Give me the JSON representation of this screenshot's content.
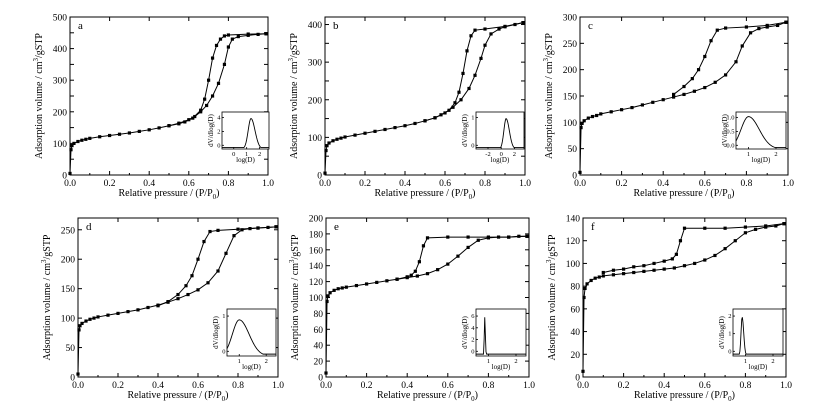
{
  "figure": {
    "panel_count": 6
  },
  "chart_data": [
    {
      "id": "a",
      "type": "line",
      "panel_label": "a",
      "xlabel": "Relative pressure / (P/P",
      "xlabel_sub": "0",
      "xlabel_tail": ")",
      "ylabel": "Adsorption volume / cm",
      "ylabel_sup": "3",
      "ylabel_tail": "/gSTP",
      "xlim": [
        0,
        1
      ],
      "ylim": [
        0,
        500
      ],
      "xticks": [
        0.0,
        0.2,
        0.4,
        0.6,
        0.8,
        1.0
      ],
      "xtick_labels": [
        "0.0",
        "0.2",
        "0.4",
        "0.6",
        "0.8",
        "1.0"
      ],
      "yticks": [
        0,
        50,
        100,
        150,
        200,
        250,
        300,
        350,
        400,
        450,
        500
      ],
      "ytick_labels": [
        "0",
        "",
        "100",
        "",
        "200",
        "",
        "300",
        "",
        "400",
        "",
        "500"
      ],
      "series": [
        {
          "name": "adsorption",
          "x": [
            0.0,
            0.005,
            0.01,
            0.02,
            0.04,
            0.06,
            0.08,
            0.1,
            0.15,
            0.2,
            0.25,
            0.3,
            0.35,
            0.4,
            0.45,
            0.5,
            0.55,
            0.6,
            0.63,
            0.66,
            0.69,
            0.72,
            0.75,
            0.78,
            0.8,
            0.82,
            0.85,
            0.9,
            0.95,
            0.99
          ],
          "y": [
            5,
            80,
            93,
            100,
            106,
            110,
            113,
            116,
            121,
            125,
            129,
            133,
            138,
            143,
            149,
            156,
            164,
            175,
            185,
            200,
            220,
            250,
            290,
            350,
            405,
            430,
            438,
            442,
            445,
            447
          ]
        },
        {
          "name": "desorption",
          "x": [
            0.99,
            0.9,
            0.8,
            0.78,
            0.76,
            0.74,
            0.72,
            0.7,
            0.68,
            0.66,
            0.62,
            0.58,
            0.55,
            0.5
          ],
          "y": [
            447,
            446,
            443,
            440,
            430,
            410,
            370,
            300,
            240,
            205,
            180,
            168,
            162,
            156
          ]
        }
      ],
      "inset": {
        "xlabel": "log(D)",
        "ylabel": "dV/dlog(D)",
        "xlim": [
          -1,
          2
        ],
        "ylim": [
          0,
          4
        ],
        "xtick_labels": [
          "0",
          "1",
          "2"
        ],
        "ytick_labels": [
          "0",
          "2",
          "4"
        ],
        "peak_center": 0.85,
        "peak_height": 3.3,
        "peak_width": 0.18
      }
    },
    {
      "id": "b",
      "type": "line",
      "panel_label": "b",
      "xlabel": "Relative pressure / (P/P",
      "xlabel_sub": "0",
      "xlabel_tail": ")",
      "ylabel": "Adsorption volume / cm",
      "ylabel_sup": "3",
      "ylabel_tail": "/gSTP",
      "xlim": [
        0,
        1
      ],
      "ylim": [
        0,
        420
      ],
      "xticks": [
        0.0,
        0.2,
        0.4,
        0.6,
        0.8,
        1.0
      ],
      "xtick_labels": [
        "0.0",
        "0.2",
        "0.4",
        "0.6",
        "0.8",
        "1.0"
      ],
      "yticks": [
        0,
        50,
        100,
        150,
        200,
        250,
        300,
        350,
        400
      ],
      "ytick_labels": [
        "0",
        "",
        "100",
        "",
        "200",
        "",
        "300",
        "",
        "400"
      ],
      "series": [
        {
          "name": "adsorption",
          "x": [
            0.0,
            0.005,
            0.01,
            0.02,
            0.04,
            0.06,
            0.08,
            0.1,
            0.15,
            0.2,
            0.25,
            0.3,
            0.35,
            0.4,
            0.45,
            0.5,
            0.55,
            0.6,
            0.64,
            0.68,
            0.72,
            0.75,
            0.78,
            0.8,
            0.83,
            0.87,
            0.9,
            0.95,
            0.99
          ],
          "y": [
            5,
            65,
            78,
            85,
            91,
            95,
            98,
            101,
            106,
            111,
            116,
            121,
            126,
            131,
            137,
            144,
            152,
            165,
            180,
            200,
            230,
            265,
            310,
            345,
            375,
            388,
            394,
            400,
            405
          ]
        },
        {
          "name": "desorption",
          "x": [
            0.99,
            0.9,
            0.8,
            0.75,
            0.73,
            0.71,
            0.69,
            0.67,
            0.65,
            0.62,
            0.58,
            0.55,
            0.5
          ],
          "y": [
            405,
            395,
            388,
            385,
            370,
            330,
            270,
            220,
            192,
            172,
            160,
            152,
            144
          ]
        }
      ],
      "inset": {
        "xlabel": "log(D)",
        "ylabel": "dV/dlog(D)",
        "xlim": [
          -2.2,
          2.5
        ],
        "ylim": [
          0,
          1.4
        ],
        "xtick_labels": [
          "-2",
          "0",
          "2"
        ],
        "ytick_labels": [
          "0",
          "1"
        ],
        "peak_center": 0.75,
        "peak_height": 1.15,
        "peak_width": 0.22
      }
    },
    {
      "id": "c",
      "type": "line",
      "panel_label": "c",
      "xlabel": "Relative pressure / (P/P",
      "xlabel_sub": "0",
      "xlabel_tail": ")",
      "ylabel": "Adsorption volume / cm",
      "ylabel_sup": "3",
      "ylabel_tail": "/gSTP",
      "xlim": [
        0,
        1
      ],
      "ylim": [
        0,
        300
      ],
      "xticks": [
        0.0,
        0.2,
        0.4,
        0.6,
        0.8,
        1.0
      ],
      "xtick_labels": [
        "0.0",
        "0.2",
        "0.4",
        "0.6",
        "0.8",
        "1.0"
      ],
      "yticks": [
        0,
        50,
        100,
        150,
        200,
        250,
        300
      ],
      "ytick_labels": [
        "0",
        "50",
        "100",
        "150",
        "200",
        "250",
        "300"
      ],
      "series": [
        {
          "name": "adsorption",
          "x": [
            0.0,
            0.005,
            0.01,
            0.02,
            0.04,
            0.06,
            0.08,
            0.1,
            0.15,
            0.2,
            0.25,
            0.3,
            0.35,
            0.4,
            0.45,
            0.5,
            0.55,
            0.6,
            0.65,
            0.7,
            0.75,
            0.78,
            0.82,
            0.86,
            0.9,
            0.95,
            0.99
          ],
          "y": [
            5,
            90,
            98,
            103,
            108,
            111,
            113,
            116,
            120,
            124,
            128,
            133,
            138,
            143,
            148,
            153,
            159,
            166,
            176,
            190,
            215,
            245,
            270,
            278,
            281,
            284,
            290
          ]
        },
        {
          "name": "desorption",
          "x": [
            0.99,
            0.9,
            0.8,
            0.7,
            0.66,
            0.63,
            0.6,
            0.57,
            0.54,
            0.5,
            0.45
          ],
          "y": [
            290,
            284,
            281,
            279,
            275,
            255,
            225,
            200,
            183,
            168,
            153
          ]
        }
      ],
      "inset": {
        "xlabel": "log(D)",
        "ylabel": "dV/dlog(D)",
        "xlim": [
          0.5,
          2.5
        ],
        "ylim": [
          0,
          1.2
        ],
        "xtick_labels": [
          "1",
          "2"
        ],
        "ytick_labels": [
          "0.0",
          "0.5",
          "1.0"
        ],
        "peak_center": 1.0,
        "peak_height": 1.05,
        "peak_width": 0.3
      }
    },
    {
      "id": "d",
      "type": "line",
      "panel_label": "d",
      "xlabel": "Relative pressure / (P/P",
      "xlabel_sub": "0",
      "xlabel_tail": ")",
      "ylabel": "Adsorption volume / cm",
      "ylabel_sup": "3",
      "ylabel_tail": "/gSTP",
      "xlim": [
        0,
        1
      ],
      "ylim": [
        0,
        270
      ],
      "xticks": [
        0.0,
        0.2,
        0.4,
        0.6,
        0.8,
        1.0
      ],
      "xtick_labels": [
        "0.0",
        "0.2",
        "0.4",
        "0.6",
        "0.8",
        "1.0"
      ],
      "yticks": [
        0,
        50,
        100,
        150,
        200,
        250
      ],
      "ytick_labels": [
        "0",
        "50",
        "100",
        "150",
        "200",
        "250"
      ],
      "series": [
        {
          "name": "adsorption",
          "x": [
            0.0,
            0.005,
            0.01,
            0.02,
            0.04,
            0.06,
            0.08,
            0.1,
            0.15,
            0.2,
            0.25,
            0.3,
            0.35,
            0.4,
            0.45,
            0.5,
            0.55,
            0.6,
            0.65,
            0.7,
            0.74,
            0.78,
            0.82,
            0.86,
            0.9,
            0.95,
            0.99
          ],
          "y": [
            5,
            80,
            87,
            91,
            95,
            98,
            100,
            102,
            105,
            108,
            111,
            114,
            118,
            122,
            127,
            133,
            140,
            148,
            160,
            180,
            210,
            240,
            250,
            252,
            253,
            254,
            255
          ]
        },
        {
          "name": "desorption",
          "x": [
            0.99,
            0.9,
            0.8,
            0.7,
            0.66,
            0.63,
            0.6,
            0.57,
            0.54,
            0.5,
            0.45,
            0.4
          ],
          "y": [
            255,
            253,
            251,
            249,
            247,
            230,
            200,
            172,
            155,
            140,
            128,
            121
          ]
        }
      ],
      "inset": {
        "xlabel": "log(D)",
        "ylabel": "dV/dlog(D)",
        "xlim": [
          0.5,
          2.5
        ],
        "ylim": [
          0,
          1.3
        ],
        "xtick_labels": [
          "1",
          "2"
        ],
        "ytick_labels": [
          "0",
          "1"
        ],
        "peak_center": 1.0,
        "peak_height": 1.0,
        "peak_width": 0.28
      }
    },
    {
      "id": "e",
      "type": "line",
      "panel_label": "e",
      "xlabel": "Relative pressure / (P/P",
      "xlabel_sub": "0",
      "xlabel_tail": ")",
      "ylabel": "Adsorption volume / cm",
      "ylabel_sup": "3",
      "ylabel_tail": "/gSTP",
      "xlim": [
        0,
        1
      ],
      "ylim": [
        0,
        200
      ],
      "xticks": [
        0.0,
        0.2,
        0.4,
        0.6,
        0.8,
        1.0
      ],
      "xtick_labels": [
        "0.0",
        "0.2",
        "0.4",
        "0.6",
        "0.8",
        "1.0"
      ],
      "yticks": [
        0,
        20,
        40,
        60,
        80,
        100,
        120,
        140,
        160,
        180,
        200
      ],
      "ytick_labels": [
        "0",
        "20",
        "40",
        "60",
        "80",
        "100",
        "120",
        "140",
        "160",
        "180",
        "200"
      ],
      "series": [
        {
          "name": "adsorption",
          "x": [
            0.0,
            0.005,
            0.01,
            0.02,
            0.04,
            0.06,
            0.08,
            0.1,
            0.15,
            0.2,
            0.25,
            0.3,
            0.35,
            0.4,
            0.45,
            0.5,
            0.55,
            0.6,
            0.65,
            0.7,
            0.75,
            0.8,
            0.85,
            0.9,
            0.95,
            0.99
          ],
          "y": [
            5,
            95,
            102,
            106,
            109,
            111,
            112,
            113,
            115,
            117,
            119,
            121,
            123,
            125,
            127,
            130,
            135,
            142,
            152,
            163,
            172,
            175,
            176,
            176,
            177,
            177
          ]
        },
        {
          "name": "desorption",
          "x": [
            0.99,
            0.9,
            0.8,
            0.7,
            0.6,
            0.5,
            0.48,
            0.46,
            0.44,
            0.42,
            0.4,
            0.35
          ],
          "y": [
            177,
            176,
            176,
            176,
            176,
            175,
            165,
            145,
            133,
            128,
            126,
            123
          ]
        }
      ],
      "inset": {
        "xlabel": "log(D)",
        "ylabel": "dV/dlog(D)",
        "xlim": [
          0.2,
          2.5
        ],
        "ylim": [
          0,
          7
        ],
        "xtick_labels": [
          "1",
          "2"
        ],
        "ytick_labels": [
          "0",
          "2",
          "4",
          "6"
        ],
        "peak_center": 0.6,
        "peak_height": 5.8,
        "peak_width": 0.02
      }
    },
    {
      "id": "f",
      "type": "line",
      "panel_label": "f",
      "xlabel": "Relative pressure / (P/P",
      "xlabel_sub": "0",
      "xlabel_tail": ")",
      "ylabel": "Adsorption volume / cm",
      "ylabel_sup": "3",
      "ylabel_tail": "/gSTP",
      "xlim": [
        0,
        1
      ],
      "ylim": [
        0,
        140
      ],
      "xticks": [
        0.0,
        0.2,
        0.4,
        0.6,
        0.8,
        1.0
      ],
      "xtick_labels": [
        "0.0",
        "0.2",
        "0.4",
        "0.6",
        "0.8",
        "1.0"
      ],
      "yticks": [
        0,
        20,
        40,
        60,
        80,
        100,
        120,
        140
      ],
      "ytick_labels": [
        "0",
        "20",
        "40",
        "60",
        "80",
        "100",
        "120",
        "140"
      ],
      "series": [
        {
          "name": "adsorption",
          "x": [
            0.0,
            0.005,
            0.01,
            0.02,
            0.04,
            0.06,
            0.08,
            0.1,
            0.15,
            0.2,
            0.25,
            0.3,
            0.35,
            0.4,
            0.45,
            0.5,
            0.55,
            0.6,
            0.65,
            0.7,
            0.75,
            0.8,
            0.85,
            0.9,
            0.95,
            0.99
          ],
          "y": [
            5,
            70,
            78,
            82,
            85,
            87,
            88,
            89,
            90,
            91,
            92,
            93,
            94,
            95,
            96,
            98,
            100,
            103,
            107,
            113,
            120,
            127,
            130,
            132,
            133,
            135
          ]
        },
        {
          "name": "desorption",
          "x": [
            0.99,
            0.9,
            0.8,
            0.7,
            0.6,
            0.5,
            0.48,
            0.46,
            0.44,
            0.4,
            0.35,
            0.3,
            0.25,
            0.2,
            0.15,
            0.1
          ],
          "y": [
            135,
            133,
            132,
            131,
            131,
            131,
            120,
            108,
            104,
            102,
            100,
            98,
            97,
            95,
            94,
            92
          ]
        }
      ],
      "inset": {
        "xlabel": "log(D)",
        "ylabel": "dV/dlog(D)",
        "xlim": [
          0.2,
          2.5
        ],
        "ylim": [
          0,
          2.4
        ],
        "xtick_labels": [
          "1",
          "2"
        ],
        "ytick_labels": [
          "0",
          "1",
          "2"
        ],
        "peak_center": 0.62,
        "peak_height": 2.0,
        "peak_width": 0.05
      }
    }
  ]
}
